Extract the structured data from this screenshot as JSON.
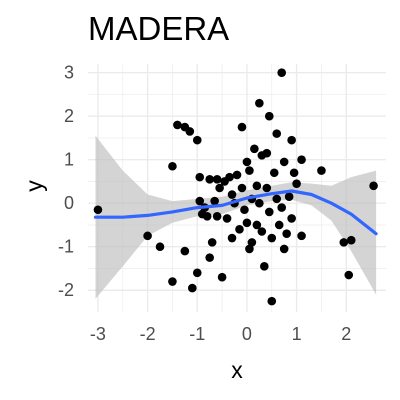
{
  "chart_data": {
    "type": "scatter",
    "title": "MADERA",
    "xlabel": "x",
    "ylabel": "y",
    "xlim": [
      -3.2,
      2.8
    ],
    "ylim": [
      -2.5,
      3.2
    ],
    "x_ticks": [
      -3,
      -2,
      -1,
      0,
      1,
      2
    ],
    "y_ticks": [
      -2,
      -1,
      0,
      1,
      2,
      3
    ],
    "grid": true,
    "colors": {
      "points": "#000000",
      "smooth": "#3366ff",
      "band": "#bdbdbd",
      "grid": "#ebebeb"
    },
    "points": [
      [
        -3.0,
        -0.15
      ],
      [
        -2.0,
        -0.75
      ],
      [
        -1.75,
        -1.0
      ],
      [
        -1.5,
        0.85
      ],
      [
        -1.5,
        -1.8
      ],
      [
        -1.4,
        1.8
      ],
      [
        -1.25,
        1.75
      ],
      [
        -1.15,
        1.65
      ],
      [
        -1.25,
        -1.1
      ],
      [
        -1.1,
        -1.95
      ],
      [
        -1.0,
        1.45
      ],
      [
        -1.0,
        -1.6
      ],
      [
        -0.95,
        0.6
      ],
      [
        -0.95,
        0.05
      ],
      [
        -0.9,
        -0.25
      ],
      [
        -0.85,
        -0.1
      ],
      [
        -0.8,
        -0.3
      ],
      [
        -0.75,
        0.55
      ],
      [
        -0.75,
        -1.25
      ],
      [
        -0.7,
        -0.9
      ],
      [
        -0.65,
        0.05
      ],
      [
        -0.6,
        0.55
      ],
      [
        -0.6,
        -0.3
      ],
      [
        -0.55,
        0.35
      ],
      [
        -0.5,
        -1.7
      ],
      [
        -0.45,
        0.5
      ],
      [
        -0.4,
        -0.35
      ],
      [
        -0.35,
        0.6
      ],
      [
        -0.3,
        0.2
      ],
      [
        -0.3,
        -0.8
      ],
      [
        -0.25,
        0.0
      ],
      [
        -0.2,
        0.65
      ],
      [
        -0.15,
        -0.6
      ],
      [
        -0.1,
        0.35
      ],
      [
        -0.1,
        1.75
      ],
      [
        -0.05,
        -0.15
      ],
      [
        0.0,
        0.95
      ],
      [
        0.0,
        -0.45
      ],
      [
        0.05,
        0.75
      ],
      [
        0.05,
        -1.05
      ],
      [
        0.1,
        0.1
      ],
      [
        0.1,
        -0.9
      ],
      [
        0.15,
        1.25
      ],
      [
        0.2,
        0.4
      ],
      [
        0.2,
        -0.5
      ],
      [
        0.25,
        0.0
      ],
      [
        0.25,
        2.3
      ],
      [
        0.3,
        1.1
      ],
      [
        0.3,
        -0.65
      ],
      [
        0.35,
        -1.45
      ],
      [
        0.4,
        1.15
      ],
      [
        0.4,
        0.35
      ],
      [
        0.45,
        -0.2
      ],
      [
        0.45,
        2.0
      ],
      [
        0.5,
        -0.8
      ],
      [
        0.5,
        -2.25
      ],
      [
        0.55,
        0.7
      ],
      [
        0.6,
        1.6
      ],
      [
        0.6,
        0.1
      ],
      [
        0.65,
        -0.5
      ],
      [
        0.7,
        3.0
      ],
      [
        0.7,
        -0.1
      ],
      [
        0.75,
        0.95
      ],
      [
        0.75,
        -1.05
      ],
      [
        0.8,
        -0.7
      ],
      [
        0.85,
        0.15
      ],
      [
        0.9,
        1.45
      ],
      [
        0.9,
        -0.35
      ],
      [
        0.95,
        0.7
      ],
      [
        1.0,
        0.45
      ],
      [
        1.1,
        1.0
      ],
      [
        1.1,
        -0.75
      ],
      [
        1.5,
        0.75
      ],
      [
        1.95,
        -0.9
      ],
      [
        2.05,
        -1.65
      ],
      [
        2.1,
        -0.85
      ],
      [
        2.55,
        0.4
      ]
    ],
    "smooth": {
      "x": [
        -3.05,
        -2.5,
        -2.0,
        -1.5,
        -1.0,
        -0.5,
        0.0,
        0.5,
        0.9,
        1.3,
        1.7,
        2.1,
        2.6
      ],
      "y": [
        -0.32,
        -0.32,
        -0.28,
        -0.2,
        -0.1,
        -0.05,
        0.12,
        0.22,
        0.28,
        0.2,
        0.0,
        -0.25,
        -0.7
      ],
      "lower": [
        -2.2,
        -1.45,
        -0.75,
        -0.45,
        -0.3,
        -0.25,
        -0.05,
        0.05,
        0.08,
        -0.05,
        -0.4,
        -1.1,
        -2.1
      ],
      "upper": [
        1.55,
        0.75,
        0.2,
        0.05,
        0.1,
        0.15,
        0.3,
        0.4,
        0.48,
        0.45,
        0.4,
        0.6,
        0.75
      ]
    }
  }
}
